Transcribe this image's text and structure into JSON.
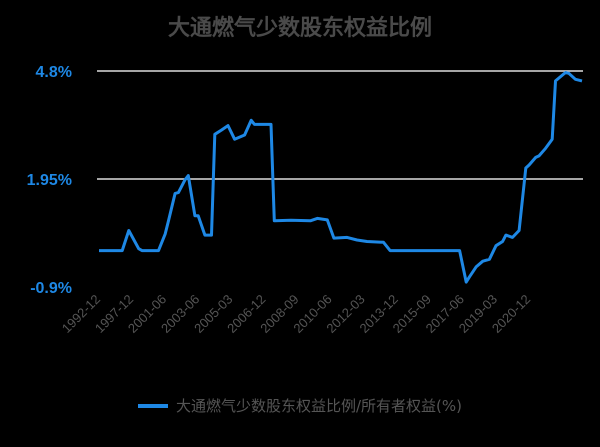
{
  "chart_data": {
    "type": "line",
    "title": "大通燃气少数股东权益比例",
    "xlabel": "",
    "ylabel": "",
    "y_ticks": [
      "4.8%",
      "1.95%",
      "-0.9%"
    ],
    "y_tick_values": [
      4.8,
      1.95,
      -0.9
    ],
    "ylim": [
      -0.9,
      4.8
    ],
    "x_tick_labels": [
      "1992-12",
      "1997-12",
      "2001-06",
      "2003-06",
      "2005-03",
      "2006-12",
      "2008-09",
      "2010-06",
      "2012-03",
      "2013-12",
      "2015-09",
      "2017-06",
      "2019-03",
      "2020-12"
    ],
    "x_tick_indices": [
      0,
      10,
      20,
      30,
      40,
      50,
      60,
      70,
      80,
      90,
      100,
      110,
      120,
      130
    ],
    "x_count": 147,
    "grid": "horizontal",
    "legend_position": "bottom",
    "series": [
      {
        "name": "大通燃气少数股东权益比例/所有者权益(%)",
        "color": "#1e88e5",
        "points": [
          [
            0,
            0.06
          ],
          [
            7,
            0.06
          ],
          [
            9,
            0.59
          ],
          [
            12,
            0.11
          ],
          [
            13,
            0.06
          ],
          [
            18,
            0.06
          ],
          [
            20,
            0.5
          ],
          [
            21,
            0.85
          ],
          [
            23,
            1.57
          ],
          [
            24,
            1.59
          ],
          [
            26,
            1.93
          ],
          [
            27,
            2.04
          ],
          [
            29,
            0.98
          ],
          [
            30,
            0.98
          ],
          [
            32,
            0.47
          ],
          [
            34,
            0.47
          ],
          [
            35,
            3.13
          ],
          [
            37,
            3.24
          ],
          [
            39,
            3.36
          ],
          [
            41,
            3.0
          ],
          [
            44,
            3.11
          ],
          [
            46,
            3.5
          ],
          [
            47,
            3.39
          ],
          [
            52,
            3.39
          ],
          [
            53,
            0.85
          ],
          [
            58,
            0.86
          ],
          [
            64,
            0.85
          ],
          [
            66,
            0.91
          ],
          [
            69,
            0.87
          ],
          [
            71,
            0.39
          ],
          [
            75,
            0.41
          ],
          [
            78,
            0.34
          ],
          [
            81,
            0.3
          ],
          [
            86,
            0.28
          ],
          [
            88,
            0.06
          ],
          [
            109,
            0.06
          ],
          [
            111,
            -0.77
          ],
          [
            112,
            -0.63
          ],
          [
            114,
            -0.37
          ],
          [
            116,
            -0.22
          ],
          [
            118,
            -0.17
          ],
          [
            120,
            0.19
          ],
          [
            122,
            0.3
          ],
          [
            123,
            0.47
          ],
          [
            125,
            0.41
          ],
          [
            127,
            0.59
          ],
          [
            129,
            2.24
          ],
          [
            130,
            2.32
          ],
          [
            132,
            2.52
          ],
          [
            133,
            2.56
          ],
          [
            135,
            2.76
          ],
          [
            137,
            3.0
          ],
          [
            138,
            4.54
          ],
          [
            141,
            4.76
          ],
          [
            142,
            4.74
          ],
          [
            144,
            4.58
          ],
          [
            146,
            4.54
          ]
        ]
      }
    ]
  }
}
